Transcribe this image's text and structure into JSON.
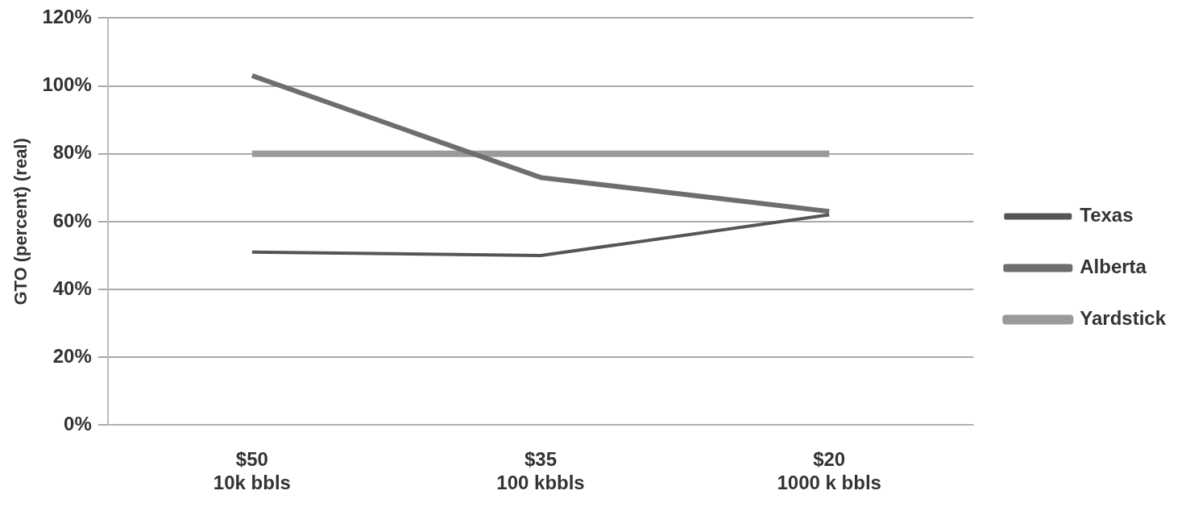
{
  "chart_data": {
    "type": "line",
    "ylabel": "GTO (percent) (real)",
    "categories": [
      "$50\n10k bbls",
      "$35\n100 kbbls",
      "$20\n1000 k bbls"
    ],
    "series": [
      {
        "name": "Texas",
        "color": "#555555",
        "values": [
          51,
          50,
          62
        ]
      },
      {
        "name": "Alberta",
        "color": "#6e6e6e",
        "values": [
          103,
          73,
          63
        ]
      },
      {
        "name": "Yardstick",
        "color": "#9a9a9a",
        "values": [
          80,
          80,
          80
        ]
      }
    ],
    "ylim": [
      0,
      120
    ],
    "yticks": [
      {
        "value": 0,
        "label": "0%"
      },
      {
        "value": 20,
        "label": "20%"
      },
      {
        "value": 40,
        "label": "40%"
      },
      {
        "value": 60,
        "label": "60%"
      },
      {
        "value": 80,
        "label": "80%"
      },
      {
        "value": 100,
        "label": "100%"
      },
      {
        "value": 120,
        "label": "120%"
      }
    ],
    "grid": "y",
    "legend": "right",
    "marker": "none",
    "line_style": "solid"
  }
}
